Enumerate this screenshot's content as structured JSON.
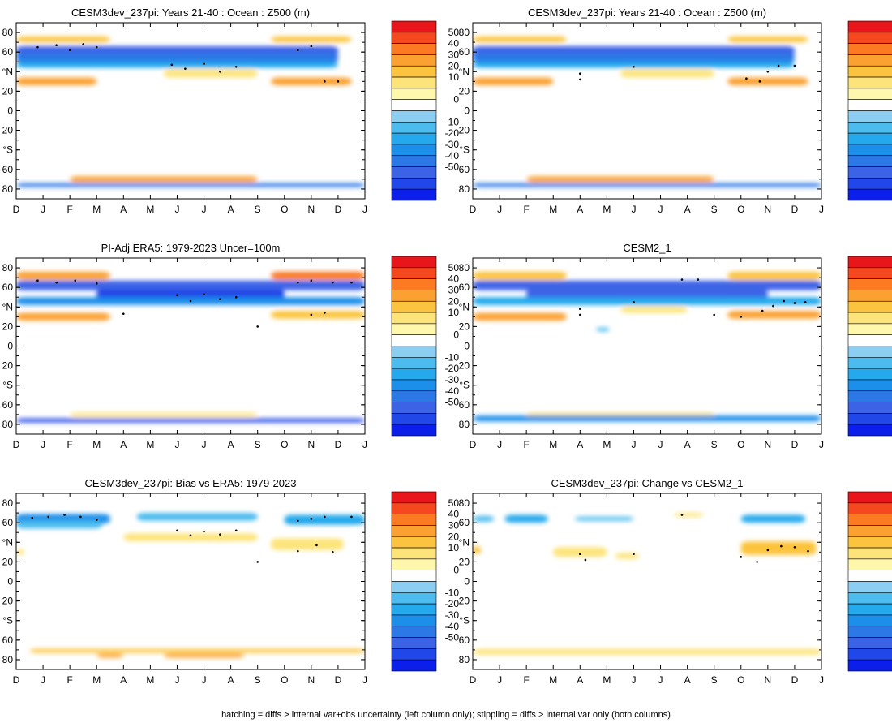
{
  "footer": "hatching = diffs > internal var+obs uncertainty (left column only); stippling = diffs > internal var only (both columns)",
  "colorbar": {
    "labels": [
      "50",
      "40",
      "30",
      "20",
      "10",
      "0",
      "-10",
      "-20",
      "-30",
      "-40",
      "-50"
    ],
    "colors": [
      "#e8161a",
      "#f5481e",
      "#fb7a22",
      "#fba131",
      "#fcc43e",
      "#fde47a",
      "#fff7ab",
      "#ffffff",
      "#8ccdf2",
      "#4cbcef",
      "#24a9ec",
      "#1c8fea",
      "#2c78e6",
      "#3c63e6",
      "#2147e8",
      "#0c1fea"
    ]
  },
  "axes": {
    "month_ticks": [
      "D",
      "J",
      "F",
      "M",
      "A",
      "M",
      "J",
      "J",
      "A",
      "S",
      "O",
      "N",
      "D",
      "J"
    ],
    "lat_ticks": [
      "80",
      "60",
      "°N",
      "20",
      "0",
      "20",
      "°S",
      "60",
      "80"
    ]
  },
  "chart_data": [
    {
      "type": "heatmap",
      "title": "CESM3dev_237pi: Years 21-40 : Ocean : Z500 (m)",
      "xlabel": "",
      "ylabel": "",
      "x": [
        "D",
        "J",
        "F",
        "M",
        "A",
        "M",
        "J",
        "J",
        "A",
        "S",
        "O",
        "N",
        "D",
        "J"
      ],
      "y": [
        "80",
        "60",
        "°N",
        "20",
        "0",
        "20",
        "°S",
        "60",
        "80"
      ],
      "zlim": [
        -50,
        50
      ],
      "features": [
        {
          "kind": "band",
          "lat": 61,
          "half_width": 5,
          "m0": 0,
          "m1": 12,
          "value": -30
        },
        {
          "kind": "band",
          "lat": 54,
          "half_width": 5,
          "m0": 0,
          "m1": 12,
          "value": -25
        },
        {
          "kind": "band",
          "lat": 47,
          "half_width": 3,
          "m0": 0,
          "m1": 12,
          "value": -15
        },
        {
          "kind": "band",
          "lat": 73,
          "half_width": 3,
          "m0": 0,
          "m1": 3.5,
          "value": 15
        },
        {
          "kind": "band",
          "lat": 73,
          "half_width": 3,
          "m0": 9.5,
          "m1": 12.5,
          "value": 15
        },
        {
          "kind": "band",
          "lat": 30,
          "half_width": 4,
          "m0": 0,
          "m1": 3,
          "value": 20
        },
        {
          "kind": "band",
          "lat": 30,
          "half_width": 4,
          "m0": 9.5,
          "m1": 12.5,
          "value": 20
        },
        {
          "kind": "band",
          "lat": 38,
          "half_width": 4,
          "m0": 5.5,
          "m1": 9,
          "value": 10
        },
        {
          "kind": "band",
          "lat": -70,
          "half_width": 3,
          "m0": 2,
          "m1": 9,
          "value": 20
        },
        {
          "kind": "band",
          "lat": -76,
          "half_width": 2,
          "m0": 0,
          "m1": 13,
          "value": -25
        }
      ],
      "stipple": [
        [
          0.8,
          65
        ],
        [
          1.5,
          67
        ],
        [
          2,
          62
        ],
        [
          2.5,
          68
        ],
        [
          3,
          65
        ],
        [
          5.8,
          47
        ],
        [
          6.3,
          43
        ],
        [
          7,
          48
        ],
        [
          7.6,
          40
        ],
        [
          8.2,
          45
        ],
        [
          10.5,
          62
        ],
        [
          11,
          66
        ],
        [
          11.5,
          30
        ],
        [
          12,
          30
        ]
      ]
    },
    {
      "type": "heatmap",
      "title": "CESM3dev_237pi: Years 21-40 : Ocean : Z500 (m)",
      "xlabel": "",
      "ylabel": "",
      "x": [
        "D",
        "J",
        "F",
        "M",
        "A",
        "M",
        "J",
        "J",
        "A",
        "S",
        "O",
        "N",
        "D",
        "J"
      ],
      "y": [
        "80",
        "60",
        "°N",
        "20",
        "0",
        "20",
        "°S",
        "60",
        "80"
      ],
      "zlim": [
        -50,
        50
      ],
      "features": [
        {
          "kind": "band",
          "lat": 61,
          "half_width": 5,
          "m0": 0,
          "m1": 12,
          "value": -30
        },
        {
          "kind": "band",
          "lat": 54,
          "half_width": 5,
          "m0": 0,
          "m1": 12,
          "value": -25
        },
        {
          "kind": "band",
          "lat": 47,
          "half_width": 3,
          "m0": 0,
          "m1": 12,
          "value": -15
        },
        {
          "kind": "band",
          "lat": 73,
          "half_width": 3,
          "m0": 0,
          "m1": 3.5,
          "value": 15
        },
        {
          "kind": "band",
          "lat": 73,
          "half_width": 3,
          "m0": 9.5,
          "m1": 12.5,
          "value": 15
        },
        {
          "kind": "band",
          "lat": 30,
          "half_width": 4,
          "m0": 0,
          "m1": 3,
          "value": 20
        },
        {
          "kind": "band",
          "lat": 30,
          "half_width": 4,
          "m0": 9.5,
          "m1": 12.5,
          "value": 20
        },
        {
          "kind": "band",
          "lat": 38,
          "half_width": 4,
          "m0": 5.5,
          "m1": 9,
          "value": 10
        },
        {
          "kind": "band",
          "lat": -70,
          "half_width": 3,
          "m0": 2,
          "m1": 9,
          "value": 20
        },
        {
          "kind": "band",
          "lat": -76,
          "half_width": 2,
          "m0": 0,
          "m1": 13,
          "value": -25
        }
      ],
      "stipple": [
        [
          4,
          38
        ],
        [
          4,
          32
        ],
        [
          6,
          45
        ],
        [
          10.2,
          33
        ],
        [
          10.7,
          30
        ],
        [
          11,
          40
        ],
        [
          11.4,
          46
        ],
        [
          12,
          46
        ]
      ]
    },
    {
      "type": "heatmap",
      "title": "PI-Adj ERA5: 1979-2023 Uncer=100m",
      "xlabel": "",
      "ylabel": "",
      "x": [
        "D",
        "J",
        "F",
        "M",
        "A",
        "M",
        "J",
        "J",
        "A",
        "S",
        "O",
        "N",
        "D",
        "J"
      ],
      "y": [
        "80",
        "60",
        "°N",
        "20",
        "0",
        "20",
        "°S",
        "60",
        "80"
      ],
      "zlim": [
        -50,
        50
      ],
      "features": [
        {
          "kind": "band",
          "lat": 62,
          "half_width": 5,
          "m0": 0,
          "m1": 13,
          "value": -30
        },
        {
          "kind": "band",
          "lat": 53,
          "half_width": 5,
          "m0": 3,
          "m1": 10,
          "value": -35
        },
        {
          "kind": "band",
          "lat": 46,
          "half_width": 4,
          "m0": 0,
          "m1": 13,
          "value": -20
        },
        {
          "kind": "band",
          "lat": 72,
          "half_width": 4,
          "m0": 0,
          "m1": 3.5,
          "value": 20
        },
        {
          "kind": "band",
          "lat": 72,
          "half_width": 4,
          "m0": 9.5,
          "m1": 13,
          "value": 25
        },
        {
          "kind": "band",
          "lat": 30,
          "half_width": 4,
          "m0": 0,
          "m1": 3.5,
          "value": 20
        },
        {
          "kind": "band",
          "lat": 32,
          "half_width": 4,
          "m0": 9.5,
          "m1": 13,
          "value": 15
        },
        {
          "kind": "band",
          "lat": -70,
          "half_width": 2,
          "m0": 2,
          "m1": 9,
          "value": 10
        },
        {
          "kind": "band",
          "lat": -76,
          "half_width": 2,
          "m0": 0,
          "m1": 13,
          "value": -35
        }
      ],
      "stipple": [
        [
          0.8,
          67
        ],
        [
          1.5,
          65
        ],
        [
          2.2,
          67
        ],
        [
          3,
          64
        ],
        [
          4,
          33
        ],
        [
          6,
          52
        ],
        [
          6.5,
          46
        ],
        [
          7,
          53
        ],
        [
          7.6,
          48
        ],
        [
          8.2,
          50
        ],
        [
          9,
          20
        ],
        [
          10.5,
          65
        ],
        [
          11,
          67
        ],
        [
          11.8,
          65
        ],
        [
          12.5,
          65
        ],
        [
          11,
          32
        ],
        [
          11.5,
          34
        ]
      ]
    },
    {
      "type": "heatmap",
      "title": "CESM2_1",
      "xlabel": "",
      "ylabel": "",
      "x": [
        "D",
        "J",
        "F",
        "M",
        "A",
        "M",
        "J",
        "J",
        "A",
        "S",
        "O",
        "N",
        "D",
        "J"
      ],
      "y": [
        "80",
        "60",
        "°N",
        "20",
        "0",
        "20",
        "°S",
        "60",
        "80"
      ],
      "zlim": [
        -50,
        50
      ],
      "features": [
        {
          "kind": "band",
          "lat": 62,
          "half_width": 5,
          "m0": 0,
          "m1": 13,
          "value": -30
        },
        {
          "kind": "band",
          "lat": 53,
          "half_width": 5,
          "m0": 2,
          "m1": 11,
          "value": -30
        },
        {
          "kind": "band",
          "lat": 46,
          "half_width": 4,
          "m0": 0,
          "m1": 13,
          "value": -15
        },
        {
          "kind": "band",
          "lat": 72,
          "half_width": 4,
          "m0": 0,
          "m1": 3.5,
          "value": 15
        },
        {
          "kind": "band",
          "lat": 72,
          "half_width": 4,
          "m0": 9.5,
          "m1": 13,
          "value": 15
        },
        {
          "kind": "band",
          "lat": 30,
          "half_width": 4,
          "m0": 0,
          "m1": 3.5,
          "value": 20
        },
        {
          "kind": "band",
          "lat": 32,
          "half_width": 4,
          "m0": 9.5,
          "m1": 13,
          "value": 20
        },
        {
          "kind": "band",
          "lat": 37,
          "half_width": 3,
          "m0": 5.5,
          "m1": 8,
          "value": 10
        },
        {
          "kind": "band",
          "lat": 17,
          "half_width": 2,
          "m0": 4.6,
          "m1": 5.1,
          "value": -10
        },
        {
          "kind": "band",
          "lat": -70,
          "half_width": 2,
          "m0": 2,
          "m1": 9,
          "value": 10
        },
        {
          "kind": "band",
          "lat": -74,
          "half_width": 3,
          "m0": 0,
          "m1": 13,
          "value": -20
        }
      ],
      "stipple": [
        [
          4,
          38
        ],
        [
          4,
          32
        ],
        [
          6,
          45
        ],
        [
          7.8,
          68
        ],
        [
          8.4,
          68
        ],
        [
          9,
          32
        ],
        [
          10,
          30
        ],
        [
          10.8,
          36
        ],
        [
          11.2,
          41
        ],
        [
          11.6,
          46
        ],
        [
          12,
          44
        ],
        [
          12.4,
          45
        ]
      ]
    },
    {
      "type": "heatmap",
      "title": "CESM3dev_237pi: Bias vs ERA5: 1979-2023",
      "xlabel": "",
      "ylabel": "",
      "x": [
        "D",
        "J",
        "F",
        "M",
        "A",
        "M",
        "J",
        "J",
        "A",
        "S",
        "O",
        "N",
        "D",
        "J"
      ],
      "y": [
        "80",
        "60",
        "°N",
        "20",
        "0",
        "20",
        "°S",
        "60",
        "80"
      ],
      "zlim": [
        -50,
        50
      ],
      "features": [
        {
          "kind": "band",
          "lat": 64,
          "half_width": 5,
          "m0": 0,
          "m1": 3.5,
          "value": -20
        },
        {
          "kind": "band",
          "lat": 58,
          "half_width": 4,
          "m0": 0,
          "m1": 3.2,
          "value": -10
        },
        {
          "kind": "band",
          "lat": 66,
          "half_width": 4,
          "m0": 4.5,
          "m1": 9,
          "value": -10
        },
        {
          "kind": "band",
          "lat": 63,
          "half_width": 5,
          "m0": 10,
          "m1": 13,
          "value": -15
        },
        {
          "kind": "band",
          "lat": 45,
          "half_width": 4,
          "m0": 4,
          "m1": 9,
          "value": 10
        },
        {
          "kind": "band",
          "lat": 38,
          "half_width": 6,
          "m0": 9.5,
          "m1": 12.2,
          "value": 10
        },
        {
          "kind": "band",
          "lat": 30,
          "half_width": 3,
          "m0": 0,
          "m1": 0.3,
          "value": 10
        },
        {
          "kind": "band",
          "lat": -71,
          "half_width": 2,
          "m0": 0.5,
          "m1": 13,
          "value": 15
        },
        {
          "kind": "band",
          "lat": -76,
          "half_width": 2,
          "m0": 3,
          "m1": 4,
          "value": 20
        },
        {
          "kind": "band",
          "lat": -76,
          "half_width": 2,
          "m0": 5.5,
          "m1": 8.5,
          "value": 20
        }
      ],
      "stipple": [
        [
          0.6,
          65
        ],
        [
          1.2,
          66
        ],
        [
          1.8,
          68
        ],
        [
          2.4,
          66
        ],
        [
          3,
          63
        ],
        [
          6,
          52
        ],
        [
          6.5,
          47
        ],
        [
          7,
          51
        ],
        [
          7.6,
          48
        ],
        [
          8.2,
          52
        ],
        [
          9,
          20
        ],
        [
          10.5,
          62
        ],
        [
          11,
          64
        ],
        [
          11.5,
          66
        ],
        [
          12.5,
          66
        ],
        [
          10.5,
          31
        ],
        [
          11.2,
          37
        ],
        [
          11.8,
          30
        ]
      ]
    },
    {
      "type": "heatmap",
      "title": "CESM3dev_237pi: Change vs CESM2_1",
      "xlabel": "",
      "ylabel": "",
      "x": [
        "D",
        "J",
        "F",
        "M",
        "A",
        "M",
        "J",
        "J",
        "A",
        "S",
        "O",
        "N",
        "D",
        "J"
      ],
      "y": [
        "80",
        "60",
        "°N",
        "20",
        "0",
        "20",
        "°S",
        "60",
        "80"
      ],
      "zlim": [
        -50,
        50
      ],
      "features": [
        {
          "kind": "band",
          "lat": 64,
          "half_width": 3,
          "m0": 0,
          "m1": 0.8,
          "value": -10
        },
        {
          "kind": "band",
          "lat": 64,
          "half_width": 4,
          "m0": 1.2,
          "m1": 2.8,
          "value": -15
        },
        {
          "kind": "band",
          "lat": 64,
          "half_width": 2,
          "m0": 3.8,
          "m1": 6,
          "value": -10
        },
        {
          "kind": "band",
          "lat": 64,
          "half_width": 4,
          "m0": 10,
          "m1": 12.4,
          "value": -15
        },
        {
          "kind": "band",
          "lat": 32,
          "half_width": 4,
          "m0": 0,
          "m1": 0.3,
          "value": 15
        },
        {
          "kind": "band",
          "lat": 30,
          "half_width": 5,
          "m0": 3,
          "m1": 5,
          "value": 10
        },
        {
          "kind": "band",
          "lat": 26,
          "half_width": 3,
          "m0": 5.3,
          "m1": 6.2,
          "value": 10
        },
        {
          "kind": "band",
          "lat": 34,
          "half_width": 7,
          "m0": 10,
          "m1": 12.8,
          "value": 15
        },
        {
          "kind": "band",
          "lat": 68,
          "half_width": 2,
          "m0": 7.5,
          "m1": 8.6,
          "value": 10
        },
        {
          "kind": "band",
          "lat": -72,
          "half_width": 3,
          "m0": 0,
          "m1": 13,
          "value": 10
        }
      ],
      "stipple": [
        [
          4,
          28
        ],
        [
          4.2,
          22
        ],
        [
          6,
          28
        ],
        [
          7.8,
          68
        ],
        [
          10,
          25
        ],
        [
          10.6,
          20
        ],
        [
          11,
          32
        ],
        [
          11.5,
          36
        ],
        [
          12,
          35
        ],
        [
          12.5,
          31
        ]
      ]
    }
  ]
}
